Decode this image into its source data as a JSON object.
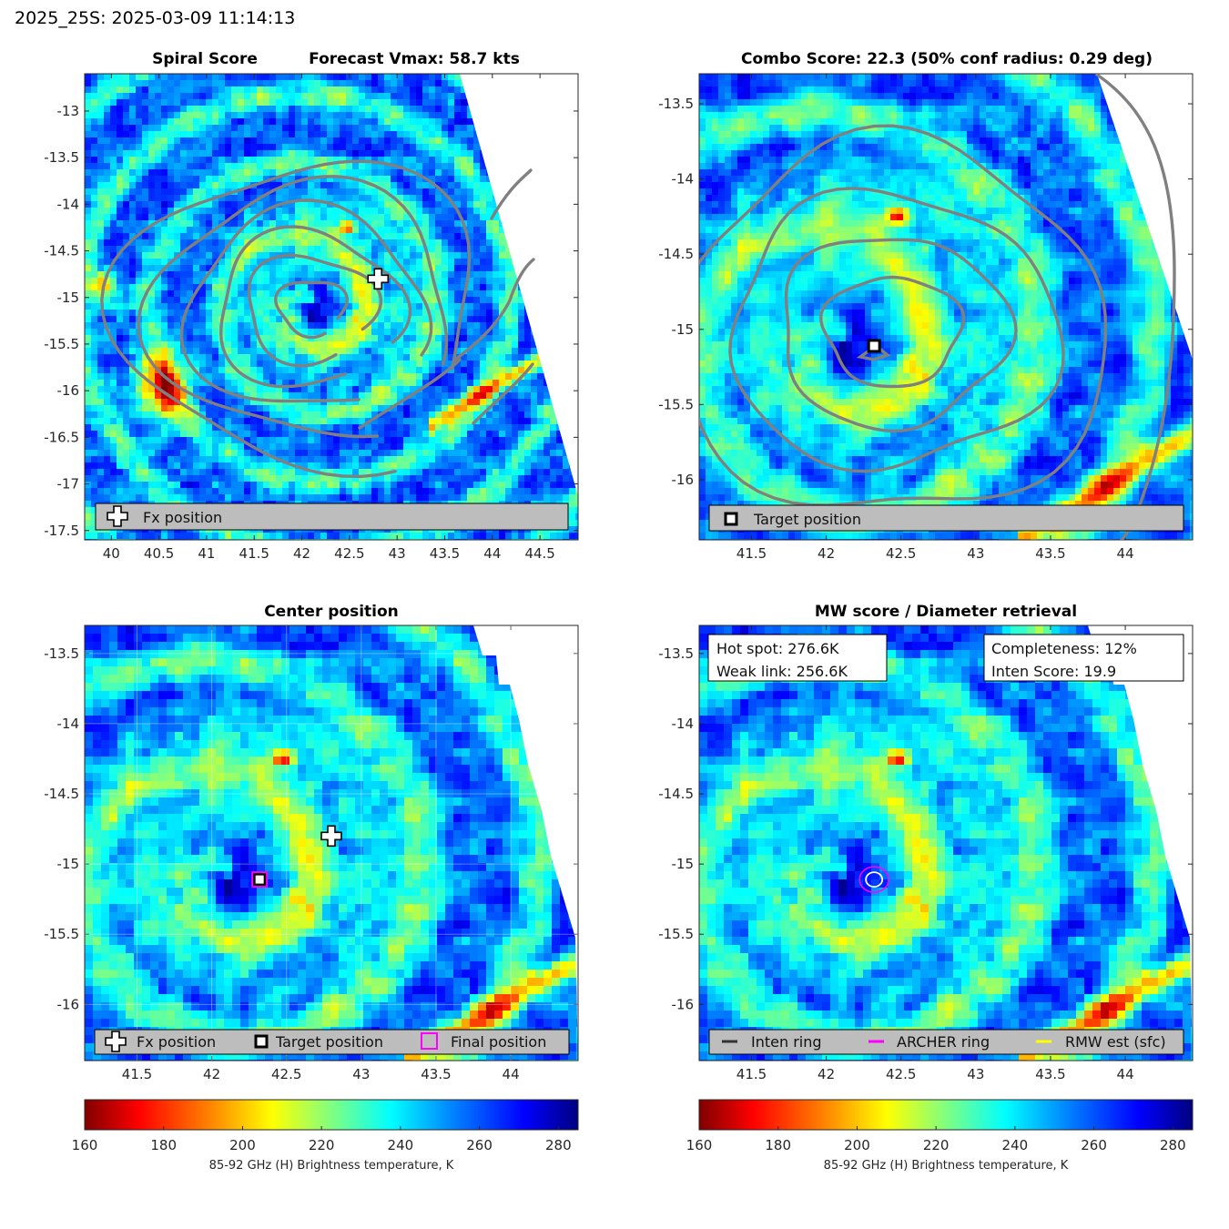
{
  "header": {
    "title": "2025_25S: 2025-03-09 11:14:13"
  },
  "colors": {
    "contour": "#808080",
    "legend_bg": "#bdbdbd",
    "final_marker": "#ff00ff",
    "archer_ring": "#ff00ff",
    "rmw": "#ffff00",
    "inten_ring": "#333333"
  },
  "colormap": [
    "#800000",
    "#ff0000",
    "#ff8000",
    "#ffff00",
    "#80ff80",
    "#00ffff",
    "#0080ff",
    "#0000ff",
    "#000080"
  ],
  "chart_data": [
    {
      "id": "spiral",
      "type": "heatmap",
      "title_left": "Spiral Score",
      "title_right": "Forecast Vmax: 58.7 kts",
      "xlim": [
        39.72,
        44.9
      ],
      "ylim": [
        -17.6,
        -12.6
      ],
      "xticks": [
        "40",
        "40.5",
        "41",
        "41.5",
        "42",
        "42.5",
        "43",
        "43.5",
        "44",
        "44.5"
      ],
      "yticks": [
        "-13",
        "-13.5",
        "-14",
        "-14.5",
        "-15",
        "-15.5",
        "-16",
        "-16.5",
        "-17",
        "-17.5"
      ],
      "markers": {
        "fx_position": [
          42.8,
          -14.8
        ]
      },
      "legend": [
        "Fx position"
      ]
    },
    {
      "id": "combo",
      "type": "heatmap",
      "title": "Combo Score: 22.3  (50% conf radius: 0.29 deg)",
      "xlim": [
        41.15,
        44.45
      ],
      "ylim": [
        -16.4,
        -13.3
      ],
      "xticks": [
        "41.5",
        "42",
        "42.5",
        "43",
        "43.5",
        "44"
      ],
      "yticks": [
        "-13.5",
        "-14",
        "-14.5",
        "-15",
        "-15.5",
        "-16"
      ],
      "markers": {
        "target_position": [
          42.32,
          -15.11
        ]
      },
      "legend": [
        "Target position"
      ]
    },
    {
      "id": "center",
      "type": "heatmap",
      "title": "Center position",
      "xlim": [
        41.15,
        44.45
      ],
      "ylim": [
        -16.4,
        -13.3
      ],
      "xticks": [
        "41.5",
        "42",
        "42.5",
        "43",
        "43.5",
        "44"
      ],
      "yticks": [
        "-13.5",
        "-14",
        "-14.5",
        "-15",
        "-15.5",
        "-16"
      ],
      "markers": {
        "fx_position": [
          42.8,
          -14.8
        ],
        "target_position": [
          42.32,
          -15.11
        ],
        "final_position": [
          42.32,
          -15.11
        ]
      },
      "legend": [
        "Fx position",
        "Target position",
        "Final position"
      ]
    },
    {
      "id": "mw",
      "type": "heatmap",
      "title": "MW score / Diameter retrieval",
      "xlim": [
        41.15,
        44.45
      ],
      "ylim": [
        -16.4,
        -13.3
      ],
      "xticks": [
        "41.5",
        "42",
        "42.5",
        "43",
        "43.5",
        "44"
      ],
      "yticks": [
        "-13.5",
        "-14",
        "-14.5",
        "-15",
        "-15.5",
        "-16"
      ],
      "info_left": [
        "Hot spot: 276.6K",
        "Weak link: 256.6K"
      ],
      "info_right": [
        "Completeness: 12%",
        "Inten Score: 19.9"
      ],
      "markers": {
        "rings_center": [
          42.32,
          -15.11
        ]
      },
      "legend": [
        "Inten ring",
        "ARCHER ring",
        "RMW est (sfc)"
      ]
    }
  ],
  "colorbars": [
    {
      "clim": [
        160,
        285
      ],
      "ticks": [
        "160",
        "180",
        "200",
        "220",
        "240",
        "260",
        "280"
      ],
      "label": "85-92 GHz (H) Brightness temperature, K"
    },
    {
      "clim": [
        160,
        285
      ],
      "ticks": [
        "160",
        "180",
        "200",
        "220",
        "240",
        "260",
        "280"
      ],
      "label": "85-92 GHz (H) Brightness temperature, K"
    }
  ]
}
